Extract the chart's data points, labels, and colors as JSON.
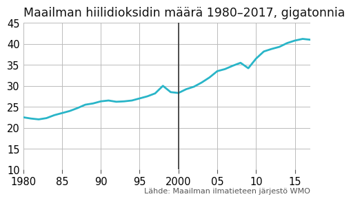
{
  "title": "Maailman hiilidioksidin määrä 1980–2017, gigatonnia",
  "source": "Lähde: Maailman ilmatieteen järjestö WMO",
  "years": [
    1980,
    1981,
    1982,
    1983,
    1984,
    1985,
    1986,
    1987,
    1988,
    1989,
    1990,
    1991,
    1992,
    1993,
    1994,
    1995,
    1996,
    1997,
    1998,
    1999,
    2000,
    2001,
    2002,
    2003,
    2004,
    2005,
    2006,
    2007,
    2008,
    2009,
    2010,
    2011,
    2012,
    2013,
    2014,
    2015,
    2016,
    2017
  ],
  "values": [
    22.5,
    22.2,
    22.0,
    22.3,
    23.0,
    23.5,
    24.0,
    24.7,
    25.5,
    25.8,
    26.3,
    26.5,
    26.2,
    26.3,
    26.5,
    27.0,
    27.5,
    28.2,
    30.0,
    28.5,
    28.3,
    29.2,
    29.8,
    30.8,
    32.0,
    33.5,
    34.0,
    34.8,
    35.5,
    34.2,
    36.5,
    38.2,
    38.8,
    39.3,
    40.2,
    40.8,
    41.2,
    41.0
  ],
  "line_color": "#29b5c8",
  "line_width": 2.0,
  "xlim": [
    1980,
    2017
  ],
  "ylim": [
    10,
    45
  ],
  "yticks": [
    10,
    15,
    20,
    25,
    30,
    35,
    40,
    45
  ],
  "xticks": [
    1980,
    1985,
    1990,
    1995,
    2000,
    2005,
    2010,
    2015
  ],
  "xtick_labels": [
    "1980",
    "85",
    "90",
    "95",
    "2000",
    "05",
    "10",
    "15"
  ],
  "grid_color": "#bbbbbb",
  "thick_grid_x": 2000,
  "background_color": "#ffffff",
  "title_fontsize": 12.5,
  "source_fontsize": 8.0,
  "tick_fontsize": 10.5
}
